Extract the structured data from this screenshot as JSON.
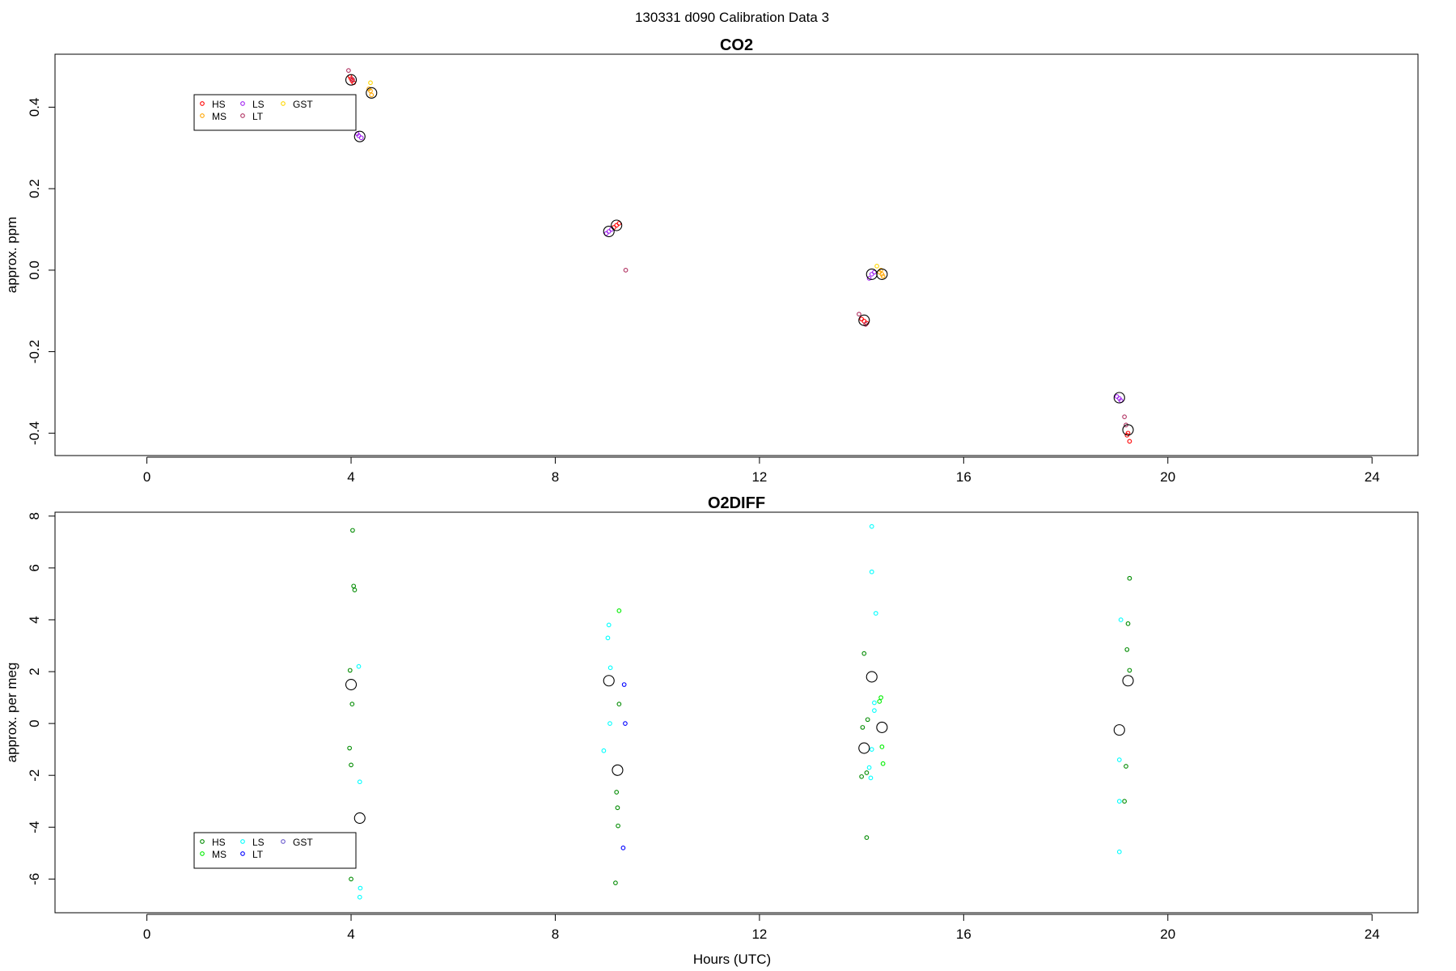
{
  "figure": {
    "title": "130331   d090   Calibration Data 3",
    "xlabel": "Hours (UTC)"
  },
  "chart_data": [
    {
      "type": "scatter",
      "title": "CO2",
      "ylabel": "approx. ppm",
      "xlim": [
        -1.8,
        24.9
      ],
      "ylim": [
        -0.455,
        0.53
      ],
      "xticks": [
        0,
        4,
        8,
        12,
        16,
        20,
        24
      ],
      "xtick_labels": [
        "0",
        "4",
        "8",
        "12",
        "16",
        "20",
        "24"
      ],
      "yticks": [
        -0.4,
        -0.2,
        0.0,
        0.2,
        0.4
      ],
      "ytick_labels": [
        "-0.4",
        "-0.2",
        "0.0",
        "0.2",
        "0.4"
      ],
      "grid": false,
      "legend_position": "top-left",
      "series": [
        {
          "name": "HS",
          "color": "#ff0000",
          "points": [
            [
              4.0,
              0.47
            ],
            [
              4.05,
              0.46
            ],
            [
              3.98,
              0.475
            ],
            [
              4.02,
              0.465
            ],
            [
              9.2,
              0.11
            ],
            [
              9.25,
              0.115
            ],
            [
              9.15,
              0.105
            ],
            [
              14.05,
              -0.125
            ],
            [
              14.0,
              -0.12
            ],
            [
              14.1,
              -0.13
            ],
            [
              19.22,
              -0.4
            ],
            [
              19.25,
              -0.42
            ],
            [
              19.2,
              -0.405
            ]
          ]
        },
        {
          "name": "MS",
          "color": "#ffa500",
          "points": [
            [
              4.38,
              0.44
            ],
            [
              4.4,
              0.43
            ],
            [
              4.35,
              0.445
            ],
            [
              14.4,
              -0.01
            ],
            [
              14.38,
              0.0
            ],
            [
              14.42,
              -0.015
            ],
            [
              14.35,
              -0.005
            ]
          ]
        },
        {
          "name": "LS",
          "color": "#a020f0",
          "points": [
            [
              4.15,
              0.33
            ],
            [
              4.2,
              0.325
            ],
            [
              4.12,
              0.335
            ],
            [
              9.05,
              0.095
            ],
            [
              9.0,
              0.09
            ],
            [
              9.1,
              0.1
            ],
            [
              14.2,
              -0.01
            ],
            [
              14.15,
              -0.02
            ],
            [
              14.25,
              -0.005
            ],
            [
              19.05,
              -0.315
            ],
            [
              19.0,
              -0.31
            ],
            [
              19.08,
              -0.32
            ]
          ]
        },
        {
          "name": "LT",
          "color": "#b03060",
          "points": [
            [
              3.95,
              0.49
            ],
            [
              4.03,
              0.468
            ],
            [
              9.38,
              0.0
            ],
            [
              13.95,
              -0.108
            ],
            [
              14.08,
              -0.133
            ],
            [
              19.15,
              -0.36
            ],
            [
              19.18,
              -0.38
            ]
          ]
        },
        {
          "name": "GST",
          "color": "#ffd700",
          "points": [
            [
              4.38,
              0.46
            ],
            [
              14.3,
              0.01
            ]
          ]
        }
      ],
      "means": [
        [
          4.0,
          0.467
        ],
        [
          4.4,
          0.435
        ],
        [
          4.17,
          0.328
        ],
        [
          9.05,
          0.095
        ],
        [
          9.2,
          0.11
        ],
        [
          14.05,
          -0.123
        ],
        [
          14.2,
          -0.01
        ],
        [
          14.4,
          -0.01
        ],
        [
          19.05,
          -0.313
        ],
        [
          19.22,
          -0.392
        ]
      ]
    },
    {
      "type": "scatter",
      "title": "O2DIFF",
      "ylabel": "approx. per meg",
      "xlim": [
        -1.8,
        24.9
      ],
      "ylim": [
        -7.3,
        8.15
      ],
      "xticks": [
        0,
        4,
        8,
        12,
        16,
        20,
        24
      ],
      "xtick_labels": [
        "0",
        "4",
        "8",
        "12",
        "16",
        "20",
        "24"
      ],
      "yticks": [
        -6,
        -4,
        -2,
        0,
        2,
        4,
        6,
        8
      ],
      "ytick_labels": [
        "-6",
        "-4",
        "-2",
        "0",
        "2",
        "4",
        "6",
        "8"
      ],
      "grid": false,
      "legend_position": "bottom-left",
      "series": [
        {
          "name": "HS",
          "color": "#008b00",
          "points": [
            [
              4.03,
              7.45
            ],
            [
              4.05,
              5.3
            ],
            [
              4.07,
              5.15
            ],
            [
              3.98,
              2.05
            ],
            [
              4.02,
              0.75
            ],
            [
              3.97,
              -0.95
            ],
            [
              4.0,
              -1.6
            ],
            [
              4.0,
              -6.0
            ],
            [
              9.25,
              0.75
            ],
            [
              9.2,
              -2.65
            ],
            [
              9.22,
              -3.25
            ],
            [
              9.23,
              -3.95
            ],
            [
              9.18,
              -6.15
            ],
            [
              14.05,
              2.7
            ],
            [
              14.02,
              -0.15
            ],
            [
              14.12,
              0.15
            ],
            [
              14.1,
              -1.9
            ],
            [
              14.0,
              -2.05
            ],
            [
              14.1,
              -4.4
            ],
            [
              19.25,
              5.6
            ],
            [
              19.22,
              3.85
            ],
            [
              19.2,
              2.85
            ],
            [
              19.25,
              2.05
            ],
            [
              19.18,
              -1.65
            ],
            [
              19.15,
              -3.0
            ]
          ]
        },
        {
          "name": "MS",
          "color": "#00ee00",
          "points": [
            [
              9.25,
              4.35
            ],
            [
              14.38,
              1.0
            ],
            [
              14.35,
              0.85
            ],
            [
              14.4,
              -0.9
            ],
            [
              14.42,
              -1.55
            ]
          ]
        },
        {
          "name": "LS",
          "color": "#00ffff",
          "points": [
            [
              4.15,
              2.2
            ],
            [
              4.17,
              -2.25
            ],
            [
              4.18,
              -6.35
            ],
            [
              4.17,
              -6.7
            ],
            [
              9.05,
              3.8
            ],
            [
              9.03,
              3.3
            ],
            [
              9.08,
              2.15
            ],
            [
              9.07,
              0.0
            ],
            [
              8.95,
              -1.05
            ],
            [
              14.2,
              7.6
            ],
            [
              14.2,
              5.85
            ],
            [
              14.28,
              4.25
            ],
            [
              14.25,
              0.8
            ],
            [
              14.25,
              0.5
            ],
            [
              14.2,
              -1.0
            ],
            [
              14.15,
              -1.7
            ],
            [
              14.18,
              -2.1
            ],
            [
              19.08,
              4.0
            ],
            [
              19.05,
              -1.4
            ],
            [
              19.05,
              -3.0
            ],
            [
              19.05,
              -4.95
            ]
          ]
        },
        {
          "name": "LT",
          "color": "#0000ff",
          "points": [
            [
              9.35,
              1.5
            ],
            [
              9.37,
              0.0
            ],
            [
              9.33,
              -4.8
            ]
          ]
        },
        {
          "name": "GST",
          "color": "#6a5acd",
          "points": []
        }
      ],
      "means": [
        [
          4.0,
          1.5
        ],
        [
          4.17,
          -3.65
        ],
        [
          9.05,
          1.65
        ],
        [
          9.22,
          -1.8
        ],
        [
          14.05,
          -0.95
        ],
        [
          14.2,
          1.8
        ],
        [
          14.4,
          -0.15
        ],
        [
          19.05,
          -0.25
        ],
        [
          19.22,
          1.65
        ]
      ]
    }
  ]
}
